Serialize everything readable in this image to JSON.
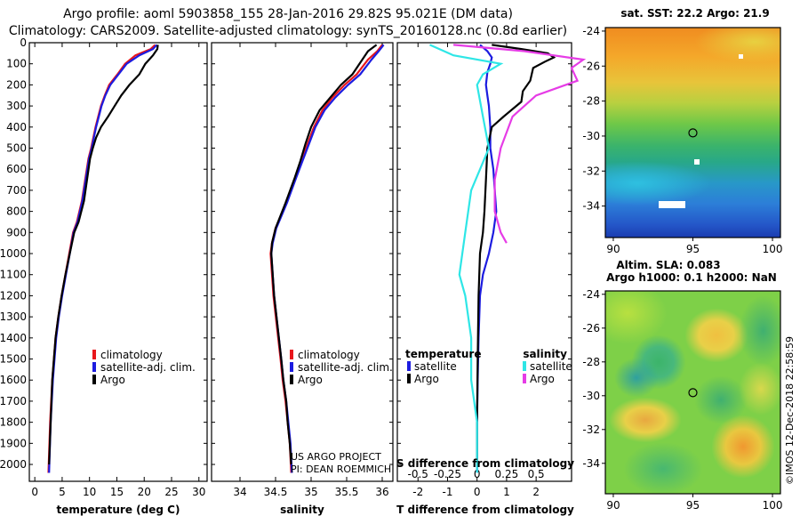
{
  "title": {
    "line1": "Argo profile: aoml 5903858_155 28-Jan-2016 29.82S 95.021E (DM data)",
    "line2": "Climatology: CARS2009. Satellite-adjusted climatology: synTS_20160128.nc (0.8d earlier)"
  },
  "colors": {
    "climatology": "#e8161c",
    "satellite": "#1c1ce0",
    "argo": "#000000",
    "sat_salinity": "#2ee6e6",
    "argo_salinity": "#e63ce6"
  },
  "chart_data": [
    {
      "type": "line",
      "id": "temperature",
      "xlabel": "temperature (deg C)",
      "ylabel": "",
      "xlim": [
        -1,
        31.5
      ],
      "ylim": [
        2080,
        0
      ],
      "xticks": [
        0,
        5,
        10,
        15,
        20,
        25,
        30
      ],
      "yticks": [
        0,
        100,
        200,
        300,
        400,
        500,
        600,
        700,
        800,
        900,
        1000,
        1100,
        1200,
        1300,
        1400,
        1500,
        1600,
        1700,
        1800,
        1900,
        2000
      ],
      "legend": [
        "climatology",
        "satellite-adj. clim.",
        "Argo"
      ],
      "legend_position": "lower-right",
      "series": [
        {
          "name": "climatology",
          "x": [
            22,
            21.2,
            18.4,
            16.5,
            15.1,
            13.6,
            12.8,
            12.1,
            11.6,
            11.1,
            10.7,
            10.3,
            9.8,
            8.6,
            7.7,
            7.0,
            6.3,
            5.6,
            4.9,
            4.3,
            3.8,
            3.2,
            2.8,
            2.5
          ],
          "y": [
            10,
            30,
            60,
            100,
            150,
            200,
            250,
            300,
            350,
            400,
            450,
            500,
            550,
            750,
            850,
            900,
            1000,
            1100,
            1200,
            1300,
            1400,
            1600,
            1800,
            2040
          ]
        },
        {
          "name": "satellite-adj. clim.",
          "x": [
            22.3,
            21.6,
            19.1,
            16.8,
            15.3,
            13.8,
            12.9,
            12.2,
            11.7,
            11.2,
            10.8,
            10.4,
            9.9,
            8.7,
            7.8,
            7.1,
            6.4,
            5.7,
            5.0,
            4.4,
            3.9,
            3.3,
            2.9,
            2.6
          ],
          "y": [
            10,
            30,
            60,
            100,
            150,
            200,
            250,
            300,
            350,
            400,
            450,
            500,
            550,
            750,
            850,
            900,
            1000,
            1100,
            1200,
            1300,
            1400,
            1600,
            1800,
            2040
          ]
        },
        {
          "name": "Argo",
          "x": [
            22.5,
            22.4,
            21.6,
            20.2,
            19.1,
            17.3,
            15.8,
            14.6,
            13.4,
            12.1,
            11.2,
            10.6,
            10.1,
            9.0,
            8.0,
            7.2,
            6.4,
            5.6,
            4.9,
            4.3,
            3.8,
            3.2,
            2.9,
            2.6
          ],
          "y": [
            10,
            30,
            60,
            100,
            150,
            200,
            250,
            300,
            350,
            400,
            450,
            500,
            550,
            750,
            850,
            900,
            1000,
            1100,
            1200,
            1300,
            1400,
            1600,
            1800,
            2000
          ]
        }
      ]
    },
    {
      "type": "line",
      "id": "salinity",
      "xlabel": "salinity",
      "xlim": [
        33.6,
        36.15
      ],
      "ylim": [
        2080,
        0
      ],
      "xticks": [
        34,
        34.5,
        35,
        35.5,
        36
      ],
      "legend": [
        "climatology",
        "satellite-adj. clim.",
        "Argo"
      ],
      "legend_position": "lower-right",
      "series": [
        {
          "name": "climatology",
          "x": [
            36.0,
            35.93,
            35.8,
            35.64,
            35.47,
            35.3,
            35.16,
            35.04,
            34.95,
            34.87,
            34.78,
            34.65,
            34.5,
            34.45,
            34.43,
            34.45,
            34.47,
            34.52,
            34.57,
            34.6,
            34.64,
            34.67,
            34.7,
            34.72
          ],
          "y": [
            10,
            40,
            80,
            150,
            200,
            260,
            320,
            400,
            480,
            560,
            640,
            760,
            880,
            950,
            1000,
            1100,
            1200,
            1350,
            1500,
            1600,
            1700,
            1800,
            1900,
            2040
          ]
        },
        {
          "name": "satellite-adj. clim.",
          "x": [
            36.02,
            35.95,
            35.85,
            35.69,
            35.52,
            35.34,
            35.19,
            35.06,
            34.97,
            34.88,
            34.79,
            34.66,
            34.51,
            34.46,
            34.44,
            34.46,
            34.48,
            34.53,
            34.58,
            34.61,
            34.65,
            34.68,
            34.71,
            34.73
          ],
          "y": [
            10,
            40,
            80,
            150,
            200,
            260,
            320,
            400,
            480,
            560,
            640,
            760,
            880,
            950,
            1000,
            1100,
            1200,
            1350,
            1500,
            1600,
            1700,
            1800,
            1900,
            2040
          ]
        },
        {
          "name": "Argo",
          "x": [
            35.92,
            35.8,
            35.72,
            35.58,
            35.42,
            35.27,
            35.12,
            35.0,
            34.92,
            34.85,
            34.77,
            34.64,
            34.5,
            34.45,
            34.44,
            34.46,
            34.48,
            34.53,
            34.58,
            34.61,
            34.65,
            34.67,
            34.7,
            34.72
          ],
          "y": [
            10,
            40,
            80,
            150,
            200,
            260,
            320,
            400,
            480,
            560,
            640,
            760,
            880,
            950,
            1000,
            1100,
            1200,
            1350,
            1500,
            1600,
            1700,
            1800,
            1900,
            2000
          ]
        }
      ]
    },
    {
      "type": "line",
      "id": "difference",
      "xlabel": "T difference from climatology",
      "xlabel2": "S difference from climatology",
      "xlim": [
        -2.7,
        3.2
      ],
      "ylim": [
        2080,
        0
      ],
      "xticks": [
        -2,
        -1,
        0,
        1,
        2
      ],
      "xticks2": [
        -0.5,
        -0.25,
        0,
        0.25,
        0.5
      ],
      "legend": [
        "satellite",
        "Argo",
        "satellite",
        "Argo"
      ],
      "legend_title_left": "temperature",
      "legend_title_right": "salinity",
      "series": [
        {
          "name": "T satellite",
          "x": [
            0.1,
            0.35,
            0.5,
            0.45,
            0.35,
            0.3,
            0.35,
            0.4,
            0.45,
            0.45,
            0.55,
            0.6,
            0.65,
            0.55,
            0.4,
            0.2,
            0.1,
            0.05,
            0.02,
            0.0,
            0.0
          ],
          "y": [
            10,
            40,
            70,
            100,
            140,
            200,
            250,
            300,
            400,
            500,
            600,
            700,
            800,
            900,
            1000,
            1100,
            1200,
            1400,
            1600,
            1800,
            2040
          ]
        },
        {
          "name": "T Argo",
          "x": [
            0.5,
            1.5,
            2.4,
            2.6,
            2.3,
            1.9,
            1.8,
            1.55,
            1.5,
            0.9,
            0.5,
            0.35,
            0.3,
            0.25,
            0.2,
            0.1,
            0.05,
            0.02,
            0.0,
            0.0
          ],
          "y": [
            10,
            30,
            50,
            70,
            90,
            120,
            180,
            230,
            280,
            350,
            400,
            500,
            650,
            800,
            900,
            1000,
            1200,
            1500,
            1800,
            2000
          ]
        },
        {
          "name": "S satellite",
          "x": [
            -0.4,
            -0.2,
            0.2,
            0.05,
            0.0,
            0.05,
            0.1,
            -0.05,
            -0.1,
            -0.15,
            -0.1,
            -0.05,
            -0.05,
            0.0,
            0.0
          ],
          "y": [
            10,
            60,
            100,
            150,
            200,
            350,
            500,
            700,
            900,
            1100,
            1200,
            1400,
            1600,
            1800,
            2040
          ]
        },
        {
          "name": "S Argo",
          "x": [
            -0.2,
            0.4,
            0.9,
            0.8,
            0.85,
            0.5,
            0.3,
            0.2,
            0.15,
            0.15,
            0.2,
            0.25
          ],
          "y": [
            10,
            40,
            80,
            120,
            180,
            250,
            350,
            500,
            650,
            800,
            900,
            950
          ]
        }
      ]
    },
    {
      "type": "heatmap",
      "id": "sst-map",
      "title": "sat. SST: 22.2 Argo: 21.9",
      "xticks": [
        90,
        95,
        100
      ],
      "yticks": [
        -24,
        -26,
        -28,
        -30,
        -32,
        -34
      ],
      "xlim": [
        89.5,
        100.5
      ],
      "ylim": [
        -35.8,
        -23.8
      ],
      "marker": {
        "lon": 95.0,
        "lat": -29.82
      }
    },
    {
      "type": "heatmap",
      "id": "sla-map",
      "title_line1": "Altim. SLA: 0.083",
      "title_line2": "Argo h1000: 0.1 h2000: NaN",
      "xticks": [
        90,
        95,
        100
      ],
      "yticks": [
        -24,
        -26,
        -28,
        -30,
        -32,
        -34
      ],
      "xlim": [
        89.5,
        100.5
      ],
      "ylim": [
        -35.8,
        -23.8
      ],
      "marker": {
        "lon": 95.0,
        "lat": -29.82
      }
    }
  ],
  "credits": {
    "project": "US ARGO PROJECT",
    "pi": "PI: DEAN ROEMMICH",
    "imos": "©IMOS 12-Dec-2018 22:58:59"
  }
}
